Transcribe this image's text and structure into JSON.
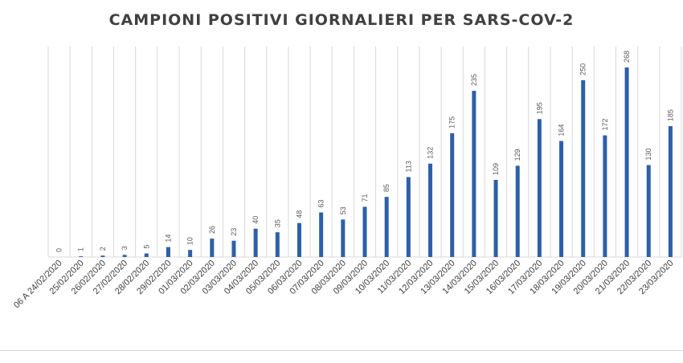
{
  "chart_data": {
    "type": "bar",
    "title": "CAMPIONI POSITIVI GIORNALIERI PER SARS-COV-2",
    "xlabel": "",
    "ylabel": "",
    "ylim": [
      0,
      268
    ],
    "grid": "vertical",
    "legend": "none",
    "bar_color": "#2e5fa8",
    "categories": [
      "06 A 24/02/2020",
      "25/02/2020",
      "26/02/2020",
      "27/02/2020",
      "28/02/2020",
      "29/02/2020",
      "01/03/2020",
      "02/03/2020",
      "03/03/2020",
      "04/03/2020",
      "05/03/2020",
      "06/03/2020",
      "07/03/2020",
      "08/03/2020",
      "09/03/2020",
      "10/03/2020",
      "11/03/2020",
      "12/03/2020",
      "13/03/2020",
      "14/03/2020",
      "15/03/2020",
      "16/03/2020",
      "17/03/2020",
      "18/03/2020",
      "19/03/2020",
      "20/03/2020",
      "21/03/2020",
      "22/03/2020",
      "23/03/2020"
    ],
    "values": [
      0,
      1,
      2,
      3,
      5,
      14,
      10,
      26,
      23,
      40,
      35,
      48,
      63,
      53,
      71,
      85,
      113,
      132,
      175,
      235,
      109,
      129,
      195,
      164,
      250,
      172,
      268,
      130,
      185
    ]
  }
}
